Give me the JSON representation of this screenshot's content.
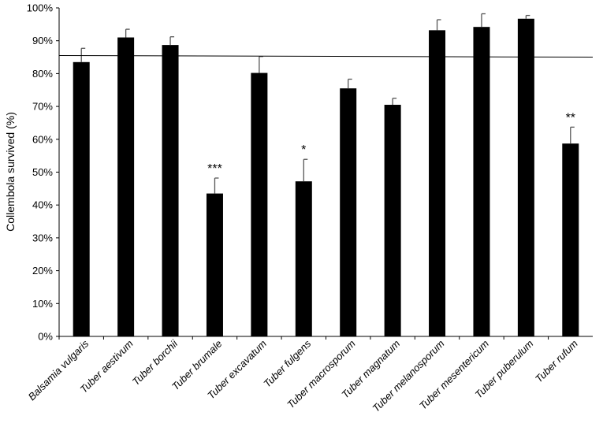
{
  "chart_data": {
    "type": "bar",
    "title": "",
    "xlabel": "",
    "ylabel": "Collembola survived (%)",
    "ylim": [
      0,
      100
    ],
    "yticks": [
      "0%",
      "10%",
      "20%",
      "30%",
      "40%",
      "50%",
      "60%",
      "70%",
      "80%",
      "90%",
      "100%"
    ],
    "grid": false,
    "categories": [
      "Balsamia vulgaris",
      "Tuber aestivum",
      "Tuber borchii",
      "Tuber brumale",
      "Tuber excavatum",
      "Tuber fulgens",
      "Tuber macrosporum",
      "Tuber magnatum",
      "Tuber melanosporum",
      "Tuber mesentericum",
      "Tuber puberulum",
      "Tuber rufum"
    ],
    "values": [
      83.5,
      91,
      88.7,
      43.5,
      80.2,
      47.2,
      75.5,
      70.5,
      93.2,
      94.2,
      96.7,
      58.7
    ],
    "error_upper": [
      4.2,
      2.5,
      2.5,
      4.7,
      5,
      6.7,
      2.8,
      2,
      3.2,
      4,
      1,
      5
    ],
    "annotations": [
      "",
      "",
      "",
      "***",
      "",
      "*",
      "",
      "",
      "",
      "",
      "",
      "**"
    ],
    "reference_line": [
      85.5,
      85
    ],
    "bar_color": "#000000"
  }
}
